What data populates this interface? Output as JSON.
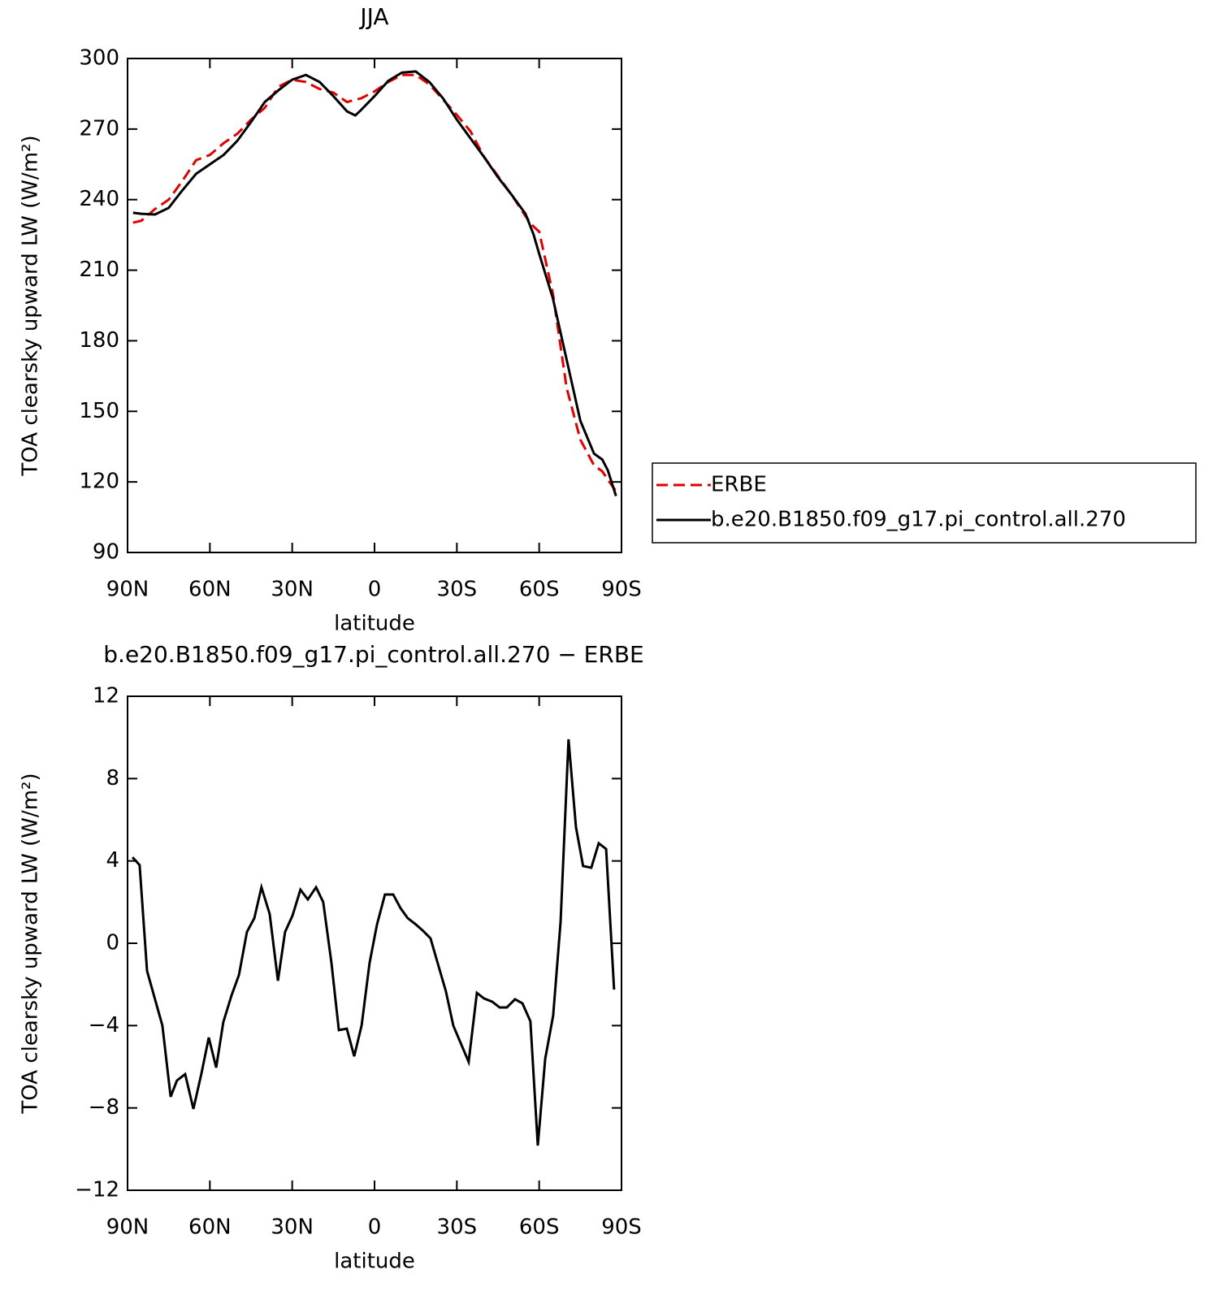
{
  "chart_data": [
    {
      "type": "line",
      "title": "JJA",
      "xlabel": "latitude",
      "ylabel": "TOA clearsky upward LW (W/m²)",
      "x": [
        88,
        85,
        80,
        75,
        70,
        65,
        60,
        55,
        50,
        45,
        40,
        35,
        30,
        25,
        20,
        15,
        10,
        7,
        5,
        0,
        -5,
        -10,
        -15,
        -20,
        -25,
        -30,
        -35,
        -40,
        -45,
        -50,
        -55,
        -58,
        -60,
        -65,
        -70,
        -75,
        -80,
        -83,
        -85,
        -88
      ],
      "series": [
        {
          "name": "ERBE",
          "color": "#e00000",
          "dash": true,
          "values": [
            230.2,
            231,
            236,
            240,
            248,
            256.8,
            259,
            264,
            268,
            274,
            279,
            288,
            291,
            290,
            287,
            285.5,
            281.5,
            282.5,
            283,
            286,
            290,
            293,
            293,
            289,
            282.5,
            276,
            269,
            258,
            250,
            242,
            233,
            228.5,
            226.4,
            200,
            160,
            138,
            127,
            124.5,
            121,
            116
          ]
        },
        {
          "name": "b.e20.B1850.f09_g17.pi_control.all.270",
          "color": "#000000",
          "dash": false,
          "values": [
            234.4,
            234,
            233.7,
            236.5,
            244,
            251,
            255,
            259,
            265,
            273,
            281.5,
            286.5,
            291,
            293,
            290,
            284,
            277.5,
            275.8,
            278,
            284,
            290.5,
            294,
            294.5,
            290,
            283,
            274,
            266,
            258,
            249.5,
            242,
            234,
            225,
            217,
            198,
            172,
            146,
            132,
            129.5,
            125,
            114
          ]
        }
      ],
      "xlim": [
        90,
        -90
      ],
      "xticks": [
        {
          "value": 90,
          "label": "90N"
        },
        {
          "value": 60,
          "label": "60N"
        },
        {
          "value": 30,
          "label": "30N"
        },
        0,
        {
          "value": -30,
          "label": "30S"
        },
        {
          "value": -60,
          "label": "60S"
        },
        {
          "value": -90,
          "label": "90S"
        }
      ],
      "ylim": [
        90,
        300
      ],
      "yticks": [
        90,
        120,
        150,
        180,
        210,
        240,
        270,
        300
      ],
      "legend": "right"
    },
    {
      "type": "line",
      "title": "b.e20.B1850.f09_g17.pi_control.all.270 − ERBE",
      "xlabel": "latitude",
      "ylabel": "TOA clearsky upward LW (W/m²)",
      "x": [
        88.2,
        85.6,
        82.9,
        77.3,
        74.3,
        72,
        69,
        66,
        63,
        60.4,
        57.7,
        55.1,
        52.1,
        49.4,
        46.5,
        43.8,
        41.2,
        38.2,
        35.2,
        32.6,
        29.9,
        27,
        24.3,
        21.3,
        18.7,
        15.7,
        13,
        10.1,
        7.4,
        4.7,
        1.8,
        -0.9,
        -3.8,
        -6.8,
        -9.5,
        -12.1,
        -15.1,
        -17.8,
        -20.4,
        -23.4,
        -26,
        -28.7,
        -34.3,
        -37.3,
        -39.9,
        -42.9,
        -45.6,
        -48.2,
        -51.2,
        -53.9,
        -56.8,
        -59.5,
        -62.2,
        -65.1,
        -67.8,
        -70.7,
        -73.4,
        -76,
        -79,
        -81.7,
        -84.4,
        -87.3
      ],
      "series": [
        {
          "color": "#000000",
          "dash": false,
          "values": [
            4.18,
            3.8,
            -1.34,
            -4.0,
            -7.46,
            -6.67,
            -6.36,
            -8.05,
            -6.28,
            -4.58,
            -6.04,
            -3.83,
            -2.53,
            -1.54,
            0.55,
            1.22,
            2.72,
            1.42,
            -1.82,
            0.55,
            1.34,
            2.6,
            2.13,
            2.72,
            2.0,
            -0.95,
            -4.22,
            -4.15,
            -5.49,
            -3.99,
            -0.95,
            0.91,
            2.37,
            2.37,
            1.7,
            1.22,
            0.91,
            0.59,
            0.24,
            -1.14,
            -2.33,
            -4.0,
            -5.76,
            -2.41,
            -2.68,
            -2.84,
            -3.12,
            -3.12,
            -2.72,
            -2.92,
            -3.79,
            -9.83,
            -5.61,
            -3.51,
            1.03,
            9.91,
            5.65,
            3.75,
            3.67,
            4.86,
            4.58,
            -2.25
          ]
        }
      ],
      "xlim": [
        90,
        -90
      ],
      "xticks": [
        {
          "value": 90,
          "label": "90N"
        },
        {
          "value": 60,
          "label": "60N"
        },
        {
          "value": 30,
          "label": "30N"
        },
        0,
        {
          "value": -30,
          "label": "30S"
        },
        {
          "value": -60,
          "label": "60S"
        },
        {
          "value": -90,
          "label": "90S"
        }
      ],
      "ylim": [
        -12,
        12
      ],
      "yticks": [
        {
          "value": -12,
          "label": "−12"
        },
        {
          "value": -8,
          "label": "−8"
        },
        {
          "value": -4,
          "label": "−4"
        },
        0,
        4,
        8,
        12
      ]
    }
  ]
}
